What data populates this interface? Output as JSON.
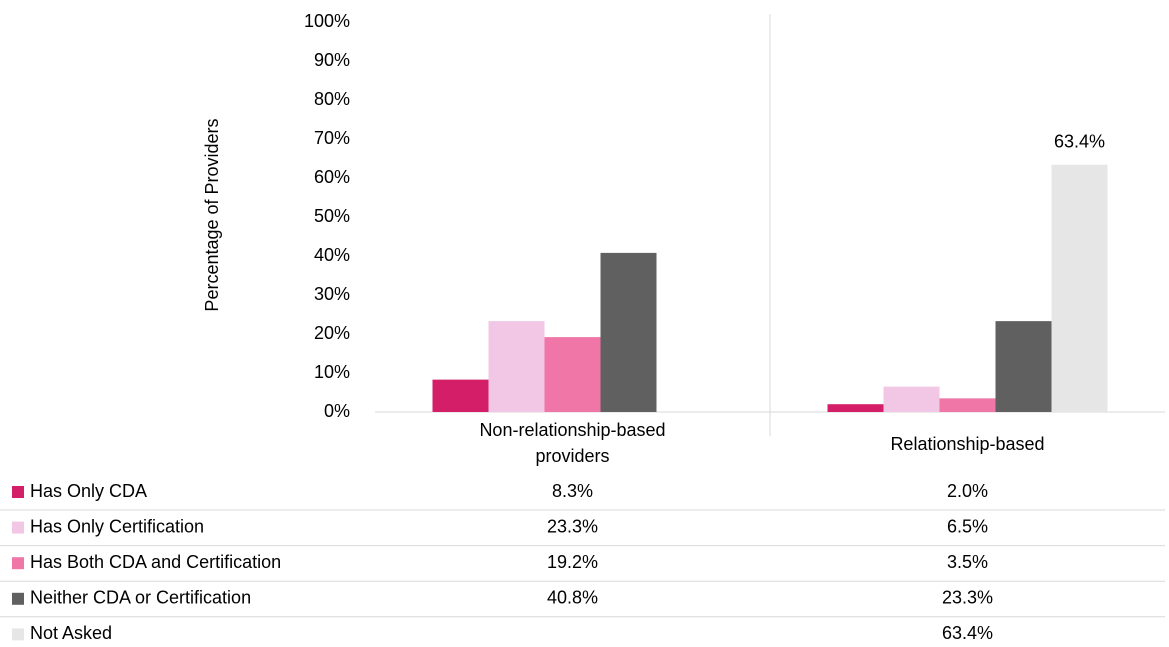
{
  "chart_data": {
    "type": "bar",
    "y_label": "Percentage of Providers",
    "categories": [
      "Non-relationship-based providers",
      "Relationship-based"
    ],
    "series": [
      {
        "name": "Has Only CDA",
        "color": "#d41f68",
        "values": [
          8.3,
          2.0
        ],
        "value_labels": [
          "8.3%",
          "2.0%"
        ]
      },
      {
        "name": "Has Only Certification",
        "color": "#f2c7e6",
        "values": [
          23.3,
          6.5
        ],
        "value_labels": [
          "23.3%",
          "6.5%"
        ]
      },
      {
        "name": "Has Both CDA and Certification",
        "color": "#ef76a7",
        "values": [
          19.2,
          3.5
        ],
        "value_labels": [
          "19.2%",
          "3.5%"
        ]
      },
      {
        "name": "Neither CDA or Certification",
        "color": "#606060",
        "values": [
          40.8,
          23.3
        ],
        "value_labels": [
          "40.8%",
          "23.3%"
        ]
      },
      {
        "name": "Not Asked",
        "color": "#e6e6e6",
        "values": [
          null,
          63.4
        ],
        "value_labels": [
          null,
          "63.4%"
        ]
      }
    ],
    "ylim": [
      0,
      100
    ],
    "yticks": [
      {
        "value": 0,
        "label": "0%"
      },
      {
        "value": 10,
        "label": "10%"
      },
      {
        "value": 20,
        "label": "20%"
      },
      {
        "value": 30,
        "label": "30%"
      },
      {
        "value": 40,
        "label": "40%"
      },
      {
        "value": 50,
        "label": "50%"
      },
      {
        "value": 60,
        "label": "60%"
      },
      {
        "value": 70,
        "label": "70%"
      },
      {
        "value": 80,
        "label": "80%"
      },
      {
        "value": 90,
        "label": "90%"
      },
      {
        "value": 100,
        "label": "100%"
      }
    ]
  }
}
